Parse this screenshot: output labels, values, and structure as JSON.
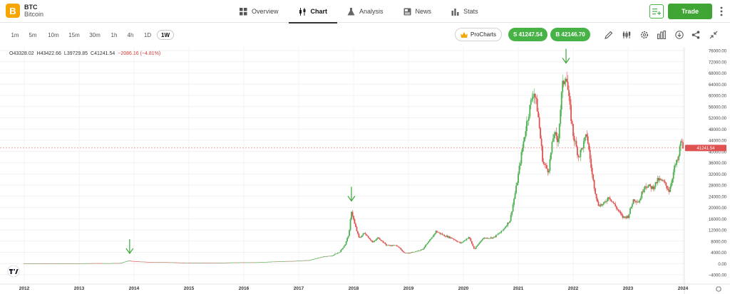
{
  "asset": {
    "logo_glyph": "B",
    "symbol": "BTC",
    "name": "Bitcoin",
    "logo_color": "#f7a600"
  },
  "nav": {
    "tabs": [
      {
        "label": "Overview",
        "icon": "grid-icon"
      },
      {
        "label": "Chart",
        "icon": "candlestick-icon",
        "active": true
      },
      {
        "label": "Analysis",
        "icon": "flask-icon"
      },
      {
        "label": "News",
        "icon": "news-icon"
      },
      {
        "label": "Stats",
        "icon": "bar-stats-icon"
      }
    ],
    "trade_label": "Trade",
    "trade_color": "#3fa535"
  },
  "toolbar": {
    "timeframes": [
      "1m",
      "5m",
      "10m",
      "15m",
      "30m",
      "1h",
      "4h",
      "1D",
      "1W"
    ],
    "active_timeframe": "1W",
    "prochart_label": "ProCharts",
    "sell_label": "S 41247.54",
    "buy_label": "B 42146.70",
    "icons": [
      "pencil-icon",
      "indicators-icon",
      "settings-icon",
      "chart-type-icon",
      "download-icon",
      "share-icon",
      "collapse-icon"
    ]
  },
  "ohlc": {
    "open": "O43328.02",
    "high": "H43422.66",
    "low": "L39729.85",
    "close": "C41241.54",
    "change": "−2086.16 (−4.81%)"
  },
  "chart_data": {
    "type": "candlestick",
    "current_price_label": "41241.54",
    "y_ticks": [
      "76000.00",
      "72000.00",
      "68000.00",
      "64000.00",
      "60000.00",
      "56000.00",
      "52000.00",
      "48000.00",
      "44000.00",
      "40000.00",
      "36000.00",
      "32000.00",
      "28000.00",
      "24000.00",
      "20000.00",
      "16000.00",
      "12000.00",
      "8000.00",
      "4000.00",
      "0.00",
      "−4000.00"
    ],
    "x_ticks": [
      "2012",
      "2013",
      "2014",
      "2015",
      "2016",
      "2017",
      "2018",
      "2019",
      "2020",
      "2021",
      "2022",
      "2023",
      "2024"
    ],
    "ylim": [
      -4000,
      76000
    ],
    "up_color": "#4caf50",
    "down_color": "#e05252",
    "price_path": [
      [
        2012.0,
        5
      ],
      [
        2012.5,
        8
      ],
      [
        2012.9,
        13
      ],
      [
        2013.3,
        100
      ],
      [
        2013.5,
        90
      ],
      [
        2013.75,
        150
      ],
      [
        2013.9,
        1000
      ],
      [
        2014.0,
        800
      ],
      [
        2014.3,
        500
      ],
      [
        2014.6,
        450
      ],
      [
        2014.9,
        320
      ],
      [
        2015.0,
        260
      ],
      [
        2015.5,
        240
      ],
      [
        2015.9,
        420
      ],
      [
        2016.2,
        410
      ],
      [
        2016.5,
        650
      ],
      [
        2016.9,
        900
      ],
      [
        2017.0,
        1000
      ],
      [
        2017.2,
        1200
      ],
      [
        2017.45,
        2500
      ],
      [
        2017.6,
        2700
      ],
      [
        2017.75,
        4200
      ],
      [
        2017.85,
        7000
      ],
      [
        2017.92,
        11000
      ],
      [
        2017.96,
        19000
      ],
      [
        2018.02,
        14000
      ],
      [
        2018.1,
        9000
      ],
      [
        2018.2,
        11000
      ],
      [
        2018.35,
        7500
      ],
      [
        2018.45,
        9300
      ],
      [
        2018.6,
        6500
      ],
      [
        2018.8,
        6400
      ],
      [
        2018.9,
        4000
      ],
      [
        2019.0,
        3700
      ],
      [
        2019.25,
        5000
      ],
      [
        2019.4,
        8500
      ],
      [
        2019.5,
        11500
      ],
      [
        2019.65,
        10000
      ],
      [
        2019.8,
        9000
      ],
      [
        2019.95,
        7200
      ],
      [
        2020.1,
        9500
      ],
      [
        2020.2,
        5000
      ],
      [
        2020.35,
        9000
      ],
      [
        2020.55,
        9300
      ],
      [
        2020.7,
        11500
      ],
      [
        2020.85,
        15500
      ],
      [
        2020.97,
        28000
      ],
      [
        2021.05,
        38000
      ],
      [
        2021.15,
        50000
      ],
      [
        2021.28,
        62000
      ],
      [
        2021.35,
        55000
      ],
      [
        2021.45,
        36000
      ],
      [
        2021.55,
        33000
      ],
      [
        2021.65,
        47000
      ],
      [
        2021.72,
        43000
      ],
      [
        2021.8,
        63000
      ],
      [
        2021.87,
        68000
      ],
      [
        2021.93,
        57000
      ],
      [
        2022.0,
        46000
      ],
      [
        2022.1,
        38000
      ],
      [
        2022.25,
        46000
      ],
      [
        2022.35,
        31000
      ],
      [
        2022.45,
        21000
      ],
      [
        2022.55,
        21000
      ],
      [
        2022.65,
        24000
      ],
      [
        2022.8,
        19500
      ],
      [
        2022.9,
        16500
      ],
      [
        2023.0,
        16800
      ],
      [
        2023.1,
        23000
      ],
      [
        2023.2,
        22000
      ],
      [
        2023.3,
        28000
      ],
      [
        2023.45,
        27000
      ],
      [
        2023.55,
        30000
      ],
      [
        2023.65,
        29000
      ],
      [
        2023.75,
        26000
      ],
      [
        2023.85,
        34500
      ],
      [
        2023.92,
        37500
      ],
      [
        2023.96,
        44000
      ],
      [
        2024.0,
        41241
      ]
    ],
    "arrows": [
      {
        "x": 2013.92,
        "y": 1100
      },
      {
        "x": 2017.96,
        "y": 19800
      },
      {
        "x": 2021.87,
        "y": 69000
      }
    ]
  }
}
